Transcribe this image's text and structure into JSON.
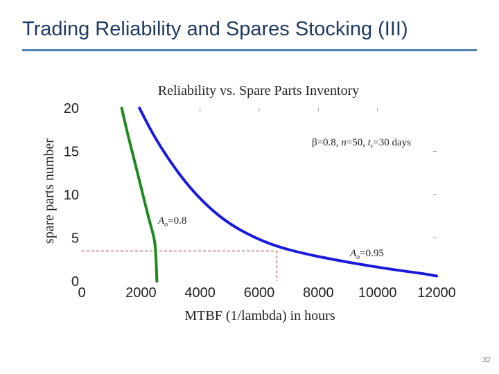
{
  "slide": {
    "title": "Trading Reliability and Spares Stocking (III)",
    "page_number": "32"
  },
  "chart_data": {
    "type": "line",
    "title": "Reliability vs. Spare Parts Inventory",
    "xlabel": "MTBF (1/lambda) in hours",
    "ylabel": "spare parts number",
    "xlim": [
      0,
      12000
    ],
    "ylim": [
      0,
      20
    ],
    "x_ticks": [
      0,
      2000,
      4000,
      6000,
      8000,
      10000,
      12000
    ],
    "y_ticks": [
      0,
      5,
      10,
      15,
      20
    ],
    "grid": false,
    "annotation": {
      "beta": "β=0.8, ",
      "n_var": "n",
      "n_val": "=50, ",
      "t_var": "t",
      "t_sub": "r",
      "t_val": "=30 days"
    },
    "series": [
      {
        "label_var": "A",
        "label_sub": "o",
        "label_val": "=0.8",
        "color": "#1e8a1e",
        "points": [
          [
            1350,
            20
          ],
          [
            1550,
            17
          ],
          [
            1850,
            13
          ],
          [
            2100,
            9.5
          ],
          [
            2300,
            6.8
          ],
          [
            2450,
            5
          ],
          [
            2500,
            3.5
          ],
          [
            2540,
            0
          ]
        ]
      },
      {
        "label_var": "A",
        "label_sub": "o",
        "label_val": "=0.95",
        "color": "#1a1adb",
        "points": [
          [
            1950,
            20
          ],
          [
            2400,
            17
          ],
          [
            2950,
            14
          ],
          [
            3600,
            11
          ],
          [
            4300,
            8.5
          ],
          [
            5000,
            6.6
          ],
          [
            5800,
            5.1
          ],
          [
            6600,
            4.0
          ],
          [
            7500,
            3.2
          ],
          [
            8500,
            2.5
          ],
          [
            9500,
            1.9
          ],
          [
            10500,
            1.35
          ],
          [
            11500,
            0.9
          ],
          [
            12000,
            0.6
          ]
        ]
      }
    ],
    "reference_lines": {
      "y": 3.5,
      "x": 6600,
      "color": "#b03030"
    }
  }
}
